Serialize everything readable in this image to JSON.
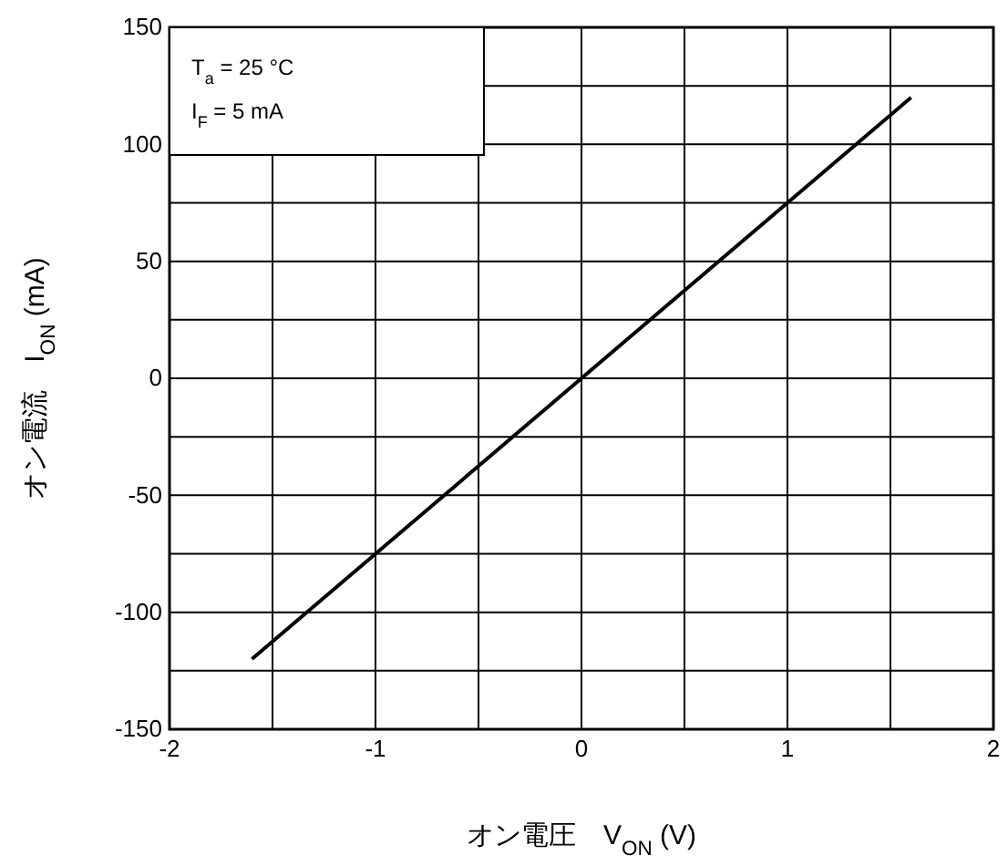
{
  "chart_data": {
    "type": "line",
    "xlabel": "オン電圧　V$_{ON}$ (V)",
    "ylabel": "オン電流　I$_{ON}$ (mA)",
    "x": [
      -1.6,
      1.6
    ],
    "series": [
      {
        "color": "#000000",
        "values": [
          -120,
          120
        ]
      }
    ],
    "xlim": [
      -2,
      2
    ],
    "ylim": [
      -150,
      150
    ],
    "xticks": [
      -2,
      {
        "value": -1.5,
        "label": null
      },
      -1,
      {
        "value": -0.5,
        "label": null
      },
      0,
      {
        "value": 0.5,
        "label": null
      },
      1,
      {
        "value": 1.5,
        "label": null
      },
      2
    ],
    "yticks": [
      -150,
      {
        "value": -125,
        "label": null
      },
      -100,
      {
        "value": -75,
        "label": null
      },
      -50,
      {
        "value": -25,
        "label": null
      },
      0,
      {
        "value": 25,
        "label": null
      },
      50,
      {
        "value": 75,
        "label": null
      },
      100,
      {
        "value": 125,
        "label": null
      },
      150
    ],
    "grid": true,
    "line_style": "solid",
    "marker": "none",
    "annotations": [
      "T$_{a}$ = 25 °C",
      "I$_{F}$ = 5 mA"
    ]
  }
}
